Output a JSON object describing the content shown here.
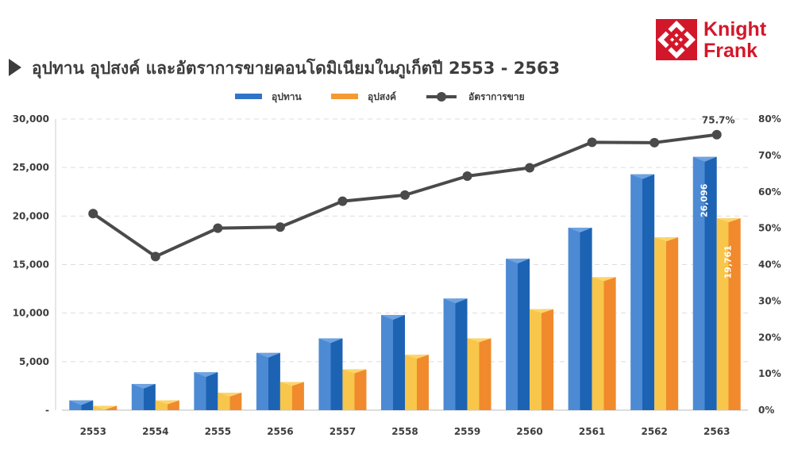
{
  "title": "อุปทาน อุปสงค์ และอัตราการขายคอนโดมิเนียมในภูเก็ตปี 2553 - 2563",
  "logo": {
    "line1": "Knight",
    "line2": "Frank",
    "color": "#d3172a"
  },
  "chart_data": {
    "type": "bar",
    "title": "อุปทาน อุปสงค์ และอัตราการขายคอนโดมิเนียมในภูเก็ตปี 2553 - 2563",
    "categories": [
      "2553",
      "2554",
      "2555",
      "2556",
      "2557",
      "2558",
      "2559",
      "2560",
      "2561",
      "2562",
      "2563"
    ],
    "series": [
      {
        "name": "อุปทาน",
        "kind": "bar",
        "axis": "left",
        "color": "#2f74c8",
        "values": [
          1000,
          2700,
          3900,
          5900,
          7400,
          9800,
          11500,
          15600,
          18800,
          24300,
          26096
        ]
      },
      {
        "name": "อุปสงค์",
        "kind": "bar",
        "axis": "left",
        "color": "#f39a33",
        "values": [
          450,
          1000,
          1800,
          2900,
          4200,
          5700,
          7400,
          10400,
          13700,
          17800,
          19761
        ]
      },
      {
        "name": "อัตราการขาย",
        "kind": "line",
        "axis": "right",
        "color": "#4a4a4a",
        "values": [
          54.0,
          42.2,
          50.0,
          50.3,
          57.4,
          59.1,
          64.3,
          66.6,
          73.6,
          73.5,
          75.7
        ]
      }
    ],
    "y_left": {
      "min": 0,
      "max": 30000,
      "ticks": [
        "-",
        "5,000",
        "10,000",
        "15,000",
        "20,000",
        "25,000",
        "30,000"
      ]
    },
    "y_right": {
      "min": 0,
      "max": 80,
      "ticks": [
        "0%",
        "10%",
        "20%",
        "30%",
        "40%",
        "50%",
        "60%",
        "70%",
        "80%"
      ]
    },
    "data_labels": {
      "supply_last": "26,096",
      "demand_last": "19,761",
      "rate_last": "75.7%"
    },
    "legend_position": "top-center",
    "grid": true
  }
}
